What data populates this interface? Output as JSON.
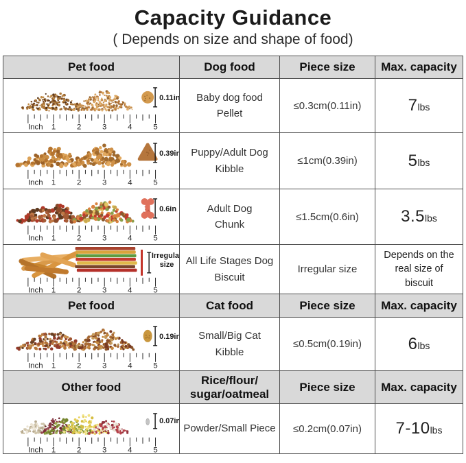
{
  "title": "Capacity Guidance",
  "subtitle": "( Depends on size and shape of food)",
  "ruler": {
    "unit_label": "Inch",
    "numbers": [
      "1",
      "2",
      "3",
      "4",
      "5"
    ]
  },
  "sections": [
    {
      "headers": [
        "Pet food",
        "Dog food",
        "Piece size",
        "Max. capacity"
      ],
      "rows": [
        {
          "name": "Baby dog food\nPellet",
          "piece_size": "≤0.3cm(0.11in)",
          "capacity": {
            "value": "7",
            "unit": "lbs"
          },
          "image": {
            "size_label": "0.11in",
            "piece": "pellet",
            "piece_color": "#d39a4e",
            "piles": [
              {
                "style": "dots-fine",
                "colors": [
                  "#9c6a33",
                  "#7a4a22",
                  "#b07a3a",
                  "#553317",
                  "#c08a45"
                ]
              },
              {
                "style": "dots-fine",
                "colors": [
                  "#c89050",
                  "#b5763a",
                  "#d9a45f",
                  "#9c6a33",
                  "#e0b070"
                ]
              }
            ]
          }
        },
        {
          "name": "Puppy/Adult Dog\nKibble",
          "piece_size": "≤1cm(0.39in)",
          "capacity": {
            "value": "5",
            "unit": "lbs"
          },
          "image": {
            "size_label": "0.39in",
            "piece": "kibble-triangle",
            "piece_color": "#b5763d",
            "piles": [
              {
                "style": "dots-chunk",
                "colors": [
                  "#c88c42",
                  "#b5742f",
                  "#dca258",
                  "#9c6228"
                ]
              },
              {
                "style": "dots-chunk",
                "colors": [
                  "#cf9148",
                  "#ba7a35",
                  "#e2a95f",
                  "#a06a2e"
                ]
              }
            ]
          }
        },
        {
          "name": "Adult Dog\nChunk",
          "piece_size": "≤1.5cm(0.6in)",
          "capacity": {
            "value": "3.5",
            "unit": "lbs"
          },
          "image": {
            "size_label": "0.6in",
            "piece": "bone",
            "piece_color": "#e0715c",
            "piles": [
              {
                "style": "dots-chunk",
                "colors": [
                  "#a55b35",
                  "#8a4a2a",
                  "#c07845",
                  "#b03a2a",
                  "#5e3a20"
                ]
              },
              {
                "style": "dots-chunk",
                "colors": [
                  "#c8a850",
                  "#8aa04a",
                  "#d9823f",
                  "#c23b2e",
                  "#e2c465",
                  "#8a5a2e"
                ]
              }
            ]
          }
        },
        {
          "name": "All Life Stages Dog\nBiscuit",
          "piece_size": "Irregular size",
          "capacity": {
            "note": "Depends on the real size of biscuit"
          },
          "image": {
            "size_label": "Irregular size",
            "piece": "irregular-line",
            "piece_color": "#c0271d",
            "piles": [
              {
                "style": "sticks",
                "colors": [
                  "#d99a4a",
                  "#c8842e",
                  "#e8ae62",
                  "#b5732a",
                  "#d9953f",
                  "#c07a2e",
                  "#e2a455"
                ]
              },
              {
                "style": "strips",
                "colors": [
                  "#a8432e",
                  "#d9a43c",
                  "#5f9c3f",
                  "#c23b2e",
                  "#e0b84a",
                  "#7a452a",
                  "#b5302a"
                ]
              }
            ]
          }
        }
      ]
    },
    {
      "headers": [
        "Pet food",
        "Cat food",
        "Piece size",
        "Max. capacity"
      ],
      "rows": [
        {
          "name": "Small/Big Cat\nKibble",
          "piece_size": "≤0.5cm(0.19in)",
          "capacity": {
            "value": "6",
            "unit": "lbs"
          },
          "image": {
            "size_label": "0.19in",
            "piece": "cat-kibble",
            "piece_color": "#c9973f",
            "piles": [
              {
                "style": "dots-med",
                "colors": [
                  "#b5763a",
                  "#a05530",
                  "#933b2a",
                  "#c89050",
                  "#6a4226"
                ]
              },
              {
                "style": "dots-med",
                "colors": [
                  "#a96a35",
                  "#8a552a",
                  "#c4873f",
                  "#7a3a22",
                  "#c49a5a"
                ]
              }
            ]
          }
        }
      ]
    },
    {
      "headers": [
        "Other food",
        "Rice/flour/\nsugar/oatmeal",
        "Piece size",
        "Max. capacity"
      ],
      "rows": [
        {
          "name": "Powder/Small Piece",
          "piece_size": "≤0.2cm(0.07in)",
          "capacity": {
            "value": "7-10",
            "unit": "lbs"
          },
          "image": {
            "size_label": "0.07in",
            "piece": "grain",
            "piece_color": "#c4c4c4",
            "piles": [
              {
                "style": "grain-mix",
                "colors": [
                  [
                    "#ece4d4",
                    "#d0c5ab",
                    "#b8ab90"
                  ],
                  [
                    "#7e2d3a",
                    "#93404a",
                    "#66222c"
                  ],
                  [
                    "#8a9a3f",
                    "#75852f",
                    "#9fb050"
                  ],
                  [
                    "#e6cf55",
                    "#d6bd3f",
                    "#f0e284"
                  ],
                  [
                    "#b5424a",
                    "#e8ded0",
                    "#93333d"
                  ]
                ]
              }
            ]
          }
        }
      ]
    }
  ],
  "chart_data": {
    "type": "table",
    "title": "Capacity Guidance",
    "subtitle": "( Depends on size and shape of food)",
    "tables": [
      {
        "columns": [
          "Pet food",
          "Dog food",
          "Piece size",
          "Max. capacity"
        ],
        "rows": [
          [
            "Baby dog food Pellet",
            "≤0.3cm(0.11in)",
            "7lbs"
          ],
          [
            "Puppy/Adult Dog Kibble",
            "≤1cm(0.39in)",
            "5lbs"
          ],
          [
            "Adult Dog Chunk",
            "≤1.5cm(0.6in)",
            "3.5lbs"
          ],
          [
            "All Life Stages Dog Biscuit",
            "Irregular size",
            "Depends on the real size of biscuit"
          ]
        ]
      },
      {
        "columns": [
          "Pet food",
          "Cat food",
          "Piece size",
          "Max. capacity"
        ],
        "rows": [
          [
            "Small/Big Cat Kibble",
            "≤0.5cm(0.19in)",
            "6lbs"
          ]
        ]
      },
      {
        "columns": [
          "Other food",
          "Rice/flour/sugar/oatmeal",
          "Piece size",
          "Max. capacity"
        ],
        "rows": [
          [
            "Powder/Small Piece",
            "≤0.2cm(0.07in)",
            "7-10lbs"
          ]
        ]
      }
    ]
  }
}
